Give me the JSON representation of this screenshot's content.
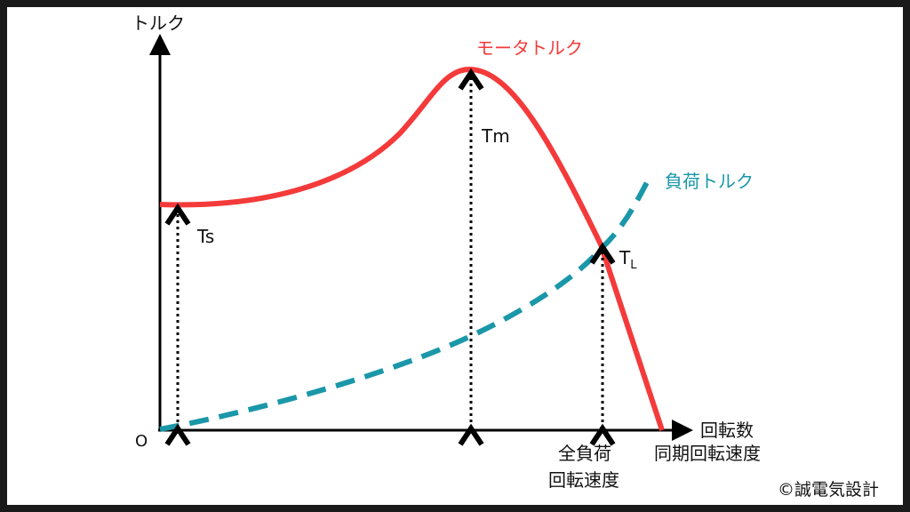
{
  "labels": {
    "y_axis": "トルク",
    "x_axis": "回転数",
    "origin": "O",
    "motor_torque": "モータトルク",
    "load_torque": "負荷トルク",
    "ts": "Ts",
    "tm": "Tm",
    "tl_main": "T",
    "tl_sub": "L",
    "full_load_1": "全負荷",
    "full_load_2": "回転速度",
    "sync_speed": "同期回転速度",
    "copyright": "©誠電気設計"
  },
  "colors": {
    "motor": "#f43a3a",
    "load": "#1a97a8",
    "axis": "#000000"
  }
}
